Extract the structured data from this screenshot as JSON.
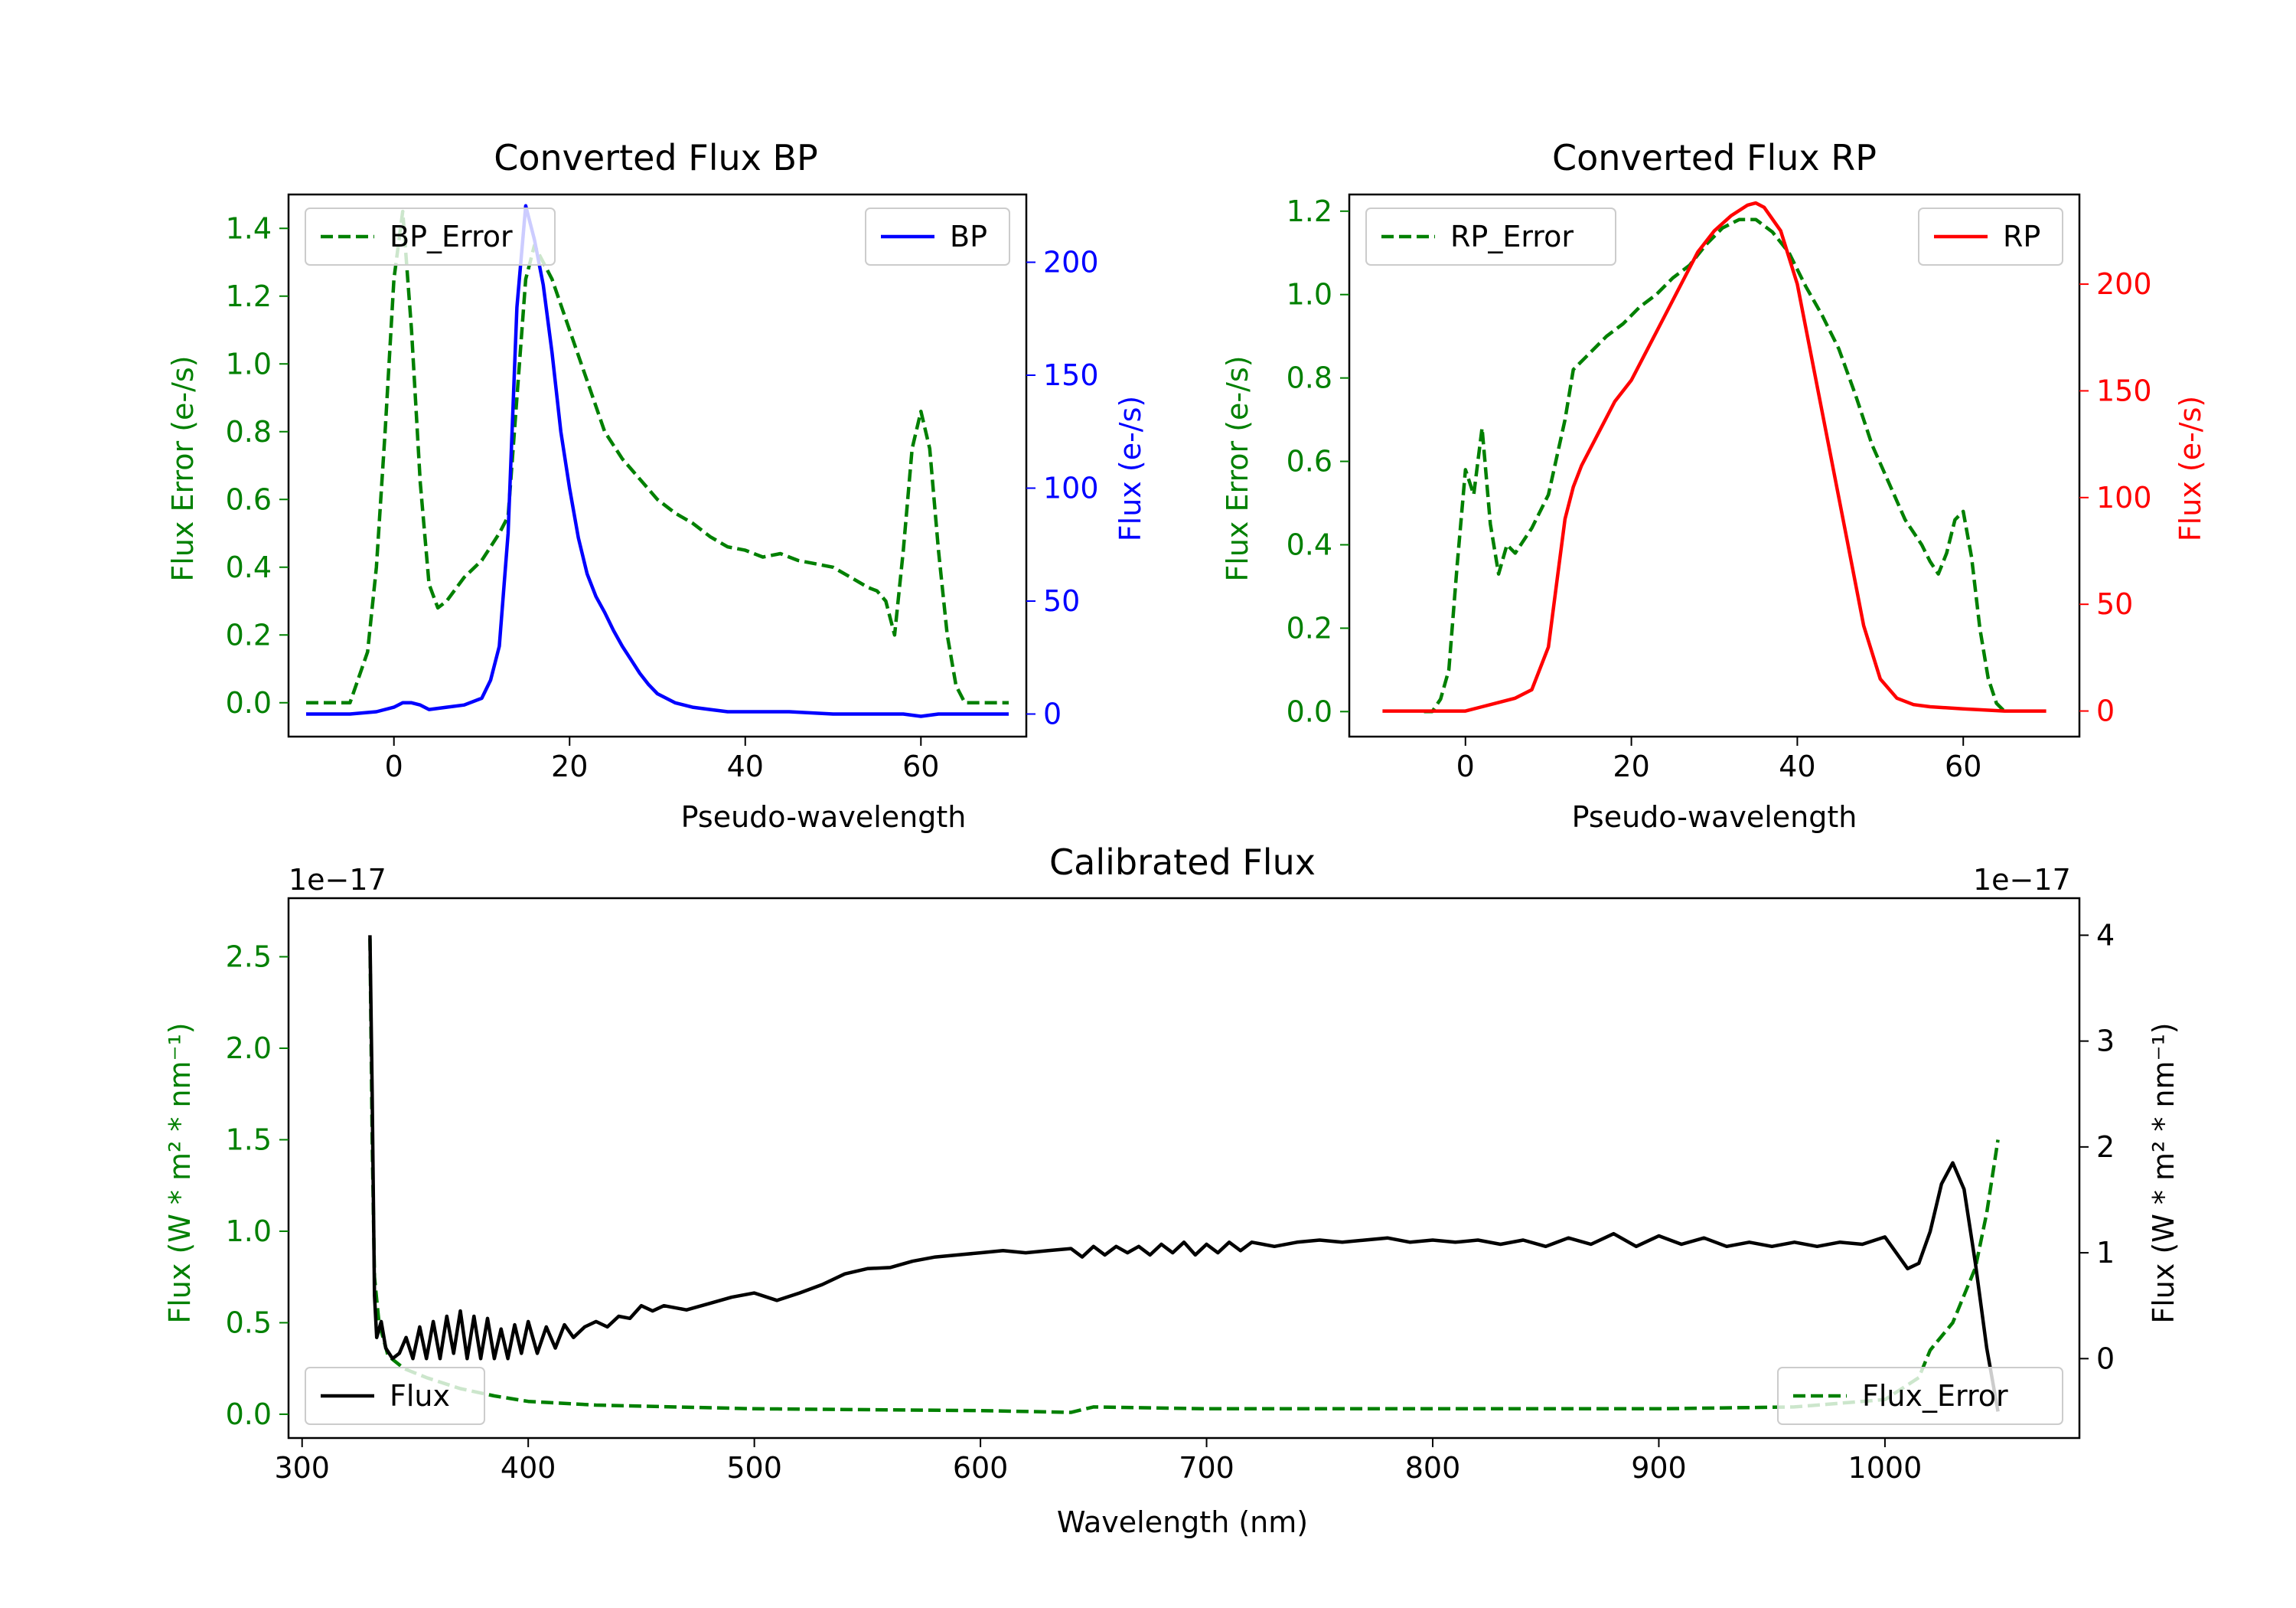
{
  "chart_data": [
    {
      "id": "bp",
      "type": "line",
      "title": "Converted Flux BP",
      "xlabel": "Pseudo-wavelength",
      "ylabel_left": "Flux Error (e-/s)",
      "ylabel_right": "Flux (e-/s)",
      "xlim": [
        -12,
        72
      ],
      "ylim_left": [
        -0.1,
        1.5
      ],
      "ylim_right": [
        -10,
        230
      ],
      "xticks": [
        0,
        20,
        40,
        60
      ],
      "yticks_left": [
        0.0,
        0.2,
        0.4,
        0.6,
        0.8,
        1.0,
        1.2,
        1.4
      ],
      "yticks_right": [
        0,
        50,
        100,
        150,
        200
      ],
      "left_axis_color": "#008000",
      "right_axis_color": "#0000ff",
      "series": [
        {
          "name": "BP_Error",
          "axis": "left",
          "color": "#008000",
          "dashed": true,
          "x": [
            -10,
            -5,
            -3,
            -2,
            -1,
            0,
            1,
            2,
            3,
            4,
            5,
            6,
            8,
            10,
            12,
            13,
            14,
            15,
            16,
            17,
            18,
            20,
            22,
            24,
            26,
            28,
            30,
            32,
            34,
            36,
            38,
            40,
            42,
            44,
            46,
            48,
            50,
            52,
            54,
            55,
            56,
            57,
            58,
            59,
            60,
            61,
            62,
            63,
            64,
            65,
            70
          ],
          "values": [
            0.0,
            0.0,
            0.15,
            0.4,
            0.8,
            1.25,
            1.45,
            1.1,
            0.65,
            0.35,
            0.28,
            0.3,
            0.37,
            0.42,
            0.5,
            0.55,
            0.9,
            1.25,
            1.35,
            1.3,
            1.25,
            1.1,
            0.95,
            0.8,
            0.72,
            0.66,
            0.6,
            0.56,
            0.53,
            0.49,
            0.46,
            0.45,
            0.43,
            0.44,
            0.42,
            0.41,
            0.4,
            0.37,
            0.34,
            0.33,
            0.3,
            0.2,
            0.45,
            0.75,
            0.86,
            0.75,
            0.45,
            0.2,
            0.05,
            0.0,
            0.0
          ]
        },
        {
          "name": "BP",
          "axis": "right",
          "color": "#0000ff",
          "dashed": false,
          "x": [
            -10,
            -5,
            -2,
            0,
            1,
            2,
            3,
            4,
            6,
            8,
            10,
            11,
            12,
            13,
            14,
            15,
            16,
            17,
            18,
            19,
            20,
            21,
            22,
            23,
            24,
            25,
            26,
            27,
            28,
            29,
            30,
            32,
            34,
            36,
            38,
            40,
            45,
            50,
            55,
            58,
            60,
            62,
            65,
            70
          ],
          "values": [
            0,
            0,
            1,
            3,
            5,
            5,
            4,
            2,
            3,
            4,
            7,
            15,
            30,
            80,
            180,
            225,
            210,
            190,
            160,
            125,
            100,
            78,
            62,
            52,
            45,
            37,
            30,
            24,
            18,
            13,
            9,
            5,
            3,
            2,
            1,
            1,
            1,
            0,
            0,
            0,
            -1,
            0,
            0,
            0
          ]
        }
      ],
      "legend": [
        {
          "label": "BP_Error",
          "position": "upper-left"
        },
        {
          "label": "BP",
          "position": "upper-right"
        }
      ]
    },
    {
      "id": "rp",
      "type": "line",
      "title": "Converted Flux RP",
      "xlabel": "Pseudo-wavelength",
      "ylabel_left": "Flux Error (e-/s)",
      "ylabel_right": "Flux (e-/s)",
      "xlim": [
        -14,
        74
      ],
      "ylim_left": [
        -0.06,
        1.24
      ],
      "ylim_right": [
        -12,
        242
      ],
      "xticks": [
        0,
        20,
        40,
        60
      ],
      "yticks_left": [
        0.0,
        0.2,
        0.4,
        0.6,
        0.8,
        1.0,
        1.2
      ],
      "yticks_right": [
        0,
        50,
        100,
        150,
        200
      ],
      "left_axis_color": "#008000",
      "right_axis_color": "#ff0000",
      "series": [
        {
          "name": "RP_Error",
          "axis": "left",
          "color": "#008000",
          "dashed": true,
          "x": [
            -5,
            -4,
            -3,
            -2,
            -1,
            0,
            1,
            2,
            3,
            4,
            5,
            6,
            8,
            10,
            12,
            13,
            15,
            17,
            19,
            21,
            23,
            25,
            27,
            29,
            31,
            33,
            35,
            37,
            39,
            41,
            43,
            45,
            47,
            49,
            51,
            53,
            55,
            56,
            57,
            58,
            59,
            60,
            61,
            62,
            63,
            64,
            65
          ],
          "values": [
            0.0,
            0.0,
            0.03,
            0.1,
            0.35,
            0.58,
            0.52,
            0.68,
            0.45,
            0.33,
            0.4,
            0.38,
            0.44,
            0.52,
            0.7,
            0.82,
            0.86,
            0.9,
            0.93,
            0.97,
            1.0,
            1.04,
            1.07,
            1.12,
            1.16,
            1.18,
            1.18,
            1.15,
            1.1,
            1.02,
            0.95,
            0.87,
            0.76,
            0.64,
            0.55,
            0.46,
            0.4,
            0.36,
            0.33,
            0.38,
            0.46,
            0.48,
            0.37,
            0.2,
            0.08,
            0.02,
            0.0
          ],
          "values_extra": []
        },
        {
          "name": "RP",
          "axis": "right",
          "color": "#ff0000",
          "dashed": false,
          "x": [
            -10,
            -5,
            0,
            2,
            4,
            6,
            8,
            10,
            11,
            12,
            13,
            14,
            16,
            18,
            20,
            22,
            24,
            26,
            28,
            30,
            32,
            34,
            35,
            36,
            38,
            40,
            42,
            44,
            46,
            48,
            50,
            52,
            54,
            56,
            60,
            65,
            70
          ],
          "values": [
            0,
            0,
            0,
            2,
            4,
            6,
            10,
            30,
            60,
            90,
            105,
            115,
            130,
            145,
            155,
            170,
            185,
            200,
            215,
            225,
            232,
            237,
            238,
            236,
            225,
            200,
            160,
            120,
            80,
            40,
            15,
            6,
            3,
            2,
            1,
            0,
            0
          ]
        }
      ],
      "legend": [
        {
          "label": "RP_Error",
          "position": "upper-left"
        },
        {
          "label": "RP",
          "position": "upper-right"
        }
      ]
    },
    {
      "id": "cal",
      "type": "line",
      "title": "Calibrated Flux",
      "xlabel": "Wavelength (nm)",
      "ylabel_left": "Flux (W * m² * nm⁻¹)",
      "ylabel_right": "Flux (W * m² * nm⁻¹)",
      "left_exponent": "1e−17",
      "right_exponent": "1e−17",
      "xlim": [
        294,
        1086
      ],
      "ylim_left": [
        -0.13,
        2.82
      ],
      "ylim_right": [
        -0.75,
        4.35
      ],
      "xticks": [
        300,
        400,
        500,
        600,
        700,
        800,
        900,
        1000
      ],
      "yticks_left": [
        0.0,
        0.5,
        1.0,
        1.5,
        2.0,
        2.5
      ],
      "yticks_right": [
        0,
        1,
        2,
        3,
        4
      ],
      "left_axis_color": "#008000",
      "right_axis_color": "#000000",
      "series": [
        {
          "name": "Flux_Error",
          "axis": "left",
          "color": "#008000",
          "dashed": true,
          "x": [
            330,
            331,
            332,
            334,
            338,
            345,
            355,
            370,
            385,
            400,
            430,
            500,
            600,
            640,
            650,
            700,
            800,
            900,
            960,
            1000,
            1015,
            1020,
            1030,
            1040,
            1045,
            1050
          ],
          "values": [
            2.6,
            1.5,
            0.75,
            0.5,
            0.32,
            0.25,
            0.2,
            0.14,
            0.1,
            0.07,
            0.05,
            0.03,
            0.02,
            0.01,
            0.04,
            0.03,
            0.03,
            0.03,
            0.04,
            0.08,
            0.2,
            0.35,
            0.5,
            0.8,
            1.1,
            1.5
          ]
        },
        {
          "name": "Flux",
          "axis": "right",
          "color": "#000000",
          "dashed": false,
          "x": [
            330,
            331,
            332,
            333,
            335,
            337,
            340,
            343,
            346,
            349,
            352,
            355,
            358,
            361,
            364,
            367,
            370,
            373,
            376,
            379,
            382,
            385,
            388,
            391,
            394,
            397,
            400,
            404,
            408,
            412,
            416,
            420,
            425,
            430,
            435,
            440,
            445,
            450,
            455,
            460,
            470,
            480,
            490,
            500,
            510,
            520,
            530,
            540,
            550,
            560,
            570,
            580,
            590,
            600,
            610,
            620,
            630,
            640,
            645,
            650,
            655,
            660,
            665,
            670,
            675,
            680,
            685,
            690,
            695,
            700,
            705,
            710,
            715,
            720,
            730,
            740,
            750,
            760,
            770,
            780,
            790,
            800,
            810,
            820,
            830,
            840,
            850,
            860,
            870,
            880,
            890,
            900,
            910,
            920,
            930,
            940,
            950,
            960,
            970,
            980,
            990,
            1000,
            1010,
            1015,
            1020,
            1025,
            1030,
            1035,
            1040,
            1045,
            1050
          ],
          "values": [
            4.0,
            2.5,
            0.6,
            0.2,
            0.35,
            0.1,
            0.0,
            0.05,
            0.2,
            0.0,
            0.3,
            0.0,
            0.35,
            0.0,
            0.4,
            0.05,
            0.45,
            0.0,
            0.4,
            0.0,
            0.38,
            0.0,
            0.28,
            0.0,
            0.32,
            0.05,
            0.35,
            0.05,
            0.3,
            0.1,
            0.32,
            0.2,
            0.3,
            0.35,
            0.3,
            0.4,
            0.38,
            0.5,
            0.45,
            0.5,
            0.46,
            0.52,
            0.58,
            0.62,
            0.55,
            0.62,
            0.7,
            0.8,
            0.85,
            0.86,
            0.92,
            0.96,
            0.98,
            1.0,
            1.02,
            1.0,
            1.02,
            1.04,
            0.96,
            1.06,
            0.98,
            1.06,
            1.0,
            1.06,
            0.98,
            1.08,
            1.0,
            1.1,
            0.98,
            1.08,
            1.0,
            1.1,
            1.02,
            1.1,
            1.06,
            1.1,
            1.12,
            1.1,
            1.12,
            1.14,
            1.1,
            1.12,
            1.1,
            1.12,
            1.08,
            1.12,
            1.06,
            1.14,
            1.08,
            1.18,
            1.06,
            1.16,
            1.08,
            1.14,
            1.06,
            1.1,
            1.06,
            1.1,
            1.06,
            1.1,
            1.08,
            1.15,
            0.85,
            0.9,
            1.2,
            1.65,
            1.85,
            1.6,
            0.9,
            0.1,
            -0.5
          ]
        }
      ],
      "legend": [
        {
          "label": "Flux",
          "position": "lower-left"
        },
        {
          "label": "Flux_Error",
          "position": "lower-right"
        }
      ]
    }
  ]
}
